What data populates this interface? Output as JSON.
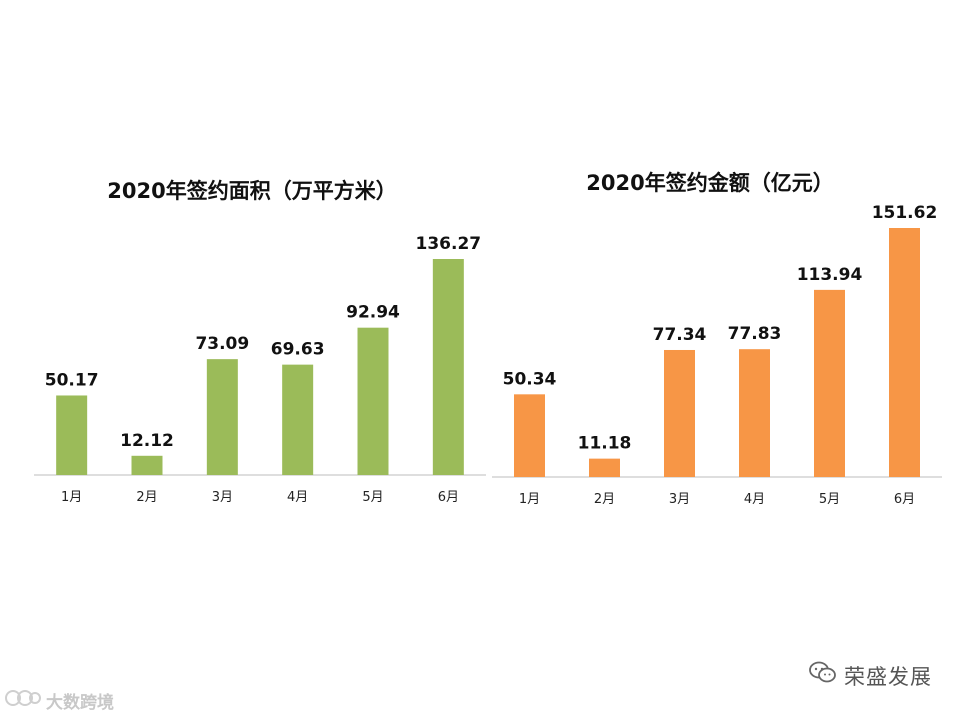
{
  "chart_data": [
    {
      "type": "bar",
      "title": "2020年签约面积（万平方米）",
      "categories": [
        "1月",
        "2月",
        "3月",
        "4月",
        "5月",
        "6月"
      ],
      "values": [
        50.17,
        12.12,
        73.09,
        69.63,
        92.94,
        136.27
      ],
      "value_labels": [
        "50.17",
        "12.12",
        "73.09",
        "69.63",
        "92.94",
        "136.27"
      ],
      "color": "#9bbb59",
      "ylim": [
        0,
        136.27
      ],
      "grid": false
    },
    {
      "type": "bar",
      "title": "2020年签约金额（亿元）",
      "categories": [
        "1月",
        "2月",
        "3月",
        "4月",
        "5月",
        "6月"
      ],
      "values": [
        50.34,
        11.18,
        77.34,
        77.83,
        113.94,
        151.62
      ],
      "value_labels": [
        "50.34",
        "11.18",
        "77.34",
        "77.83",
        "113.94",
        "151.62"
      ],
      "color": "#f79646",
      "ylim": [
        0,
        151.62
      ],
      "grid": false
    }
  ],
  "watermark": {
    "right_text": "荣盛发展",
    "right_icon": "wechat-icon",
    "left_text": "大数跨境",
    "left_icon": "logo-icon"
  }
}
